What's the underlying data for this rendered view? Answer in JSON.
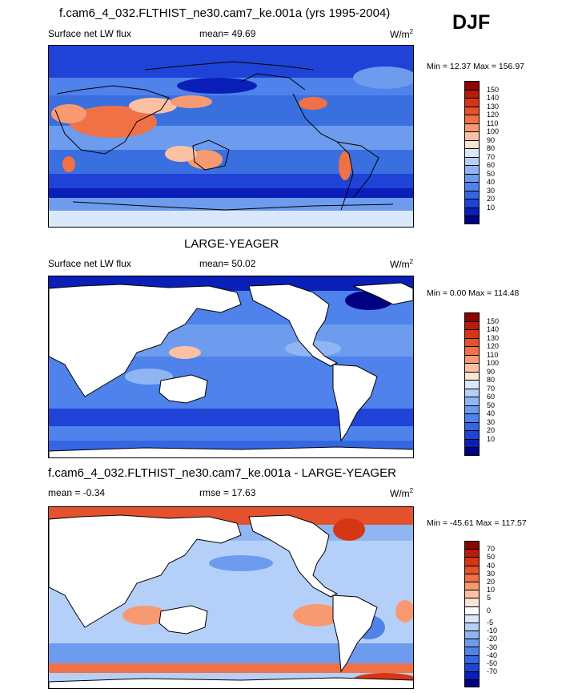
{
  "season": "DJF",
  "colors": {
    "scale_abs": [
      "#000082",
      "#0a1fb8",
      "#1f43d6",
      "#3366e0",
      "#4f82ea",
      "#6d9cef",
      "#8fb6f3",
      "#b5d0f8",
      "#dbe8fb",
      "#fde3d4",
      "#fbc1a2",
      "#f79a72",
      "#f07146",
      "#e5512c",
      "#d63516",
      "#b71c0a",
      "#8b0700"
    ],
    "scale_diff": [
      "#000082",
      "#0a1fb8",
      "#1f43d6",
      "#3366e0",
      "#4f82ea",
      "#6d9cef",
      "#8fb6f3",
      "#b5d0f8",
      "#dbe8fb",
      "#ffffff",
      "#fde3d4",
      "#fbc1a2",
      "#f79a72",
      "#f07146",
      "#e5512c",
      "#d63516",
      "#b71c0a",
      "#8b0700"
    ],
    "land": "#ffffff",
    "coast": "#000000"
  },
  "panels": [
    {
      "title": "f.cam6_4_032.FLTHIST_ne30.cam7_ke.001a (yrs 1995-2004)",
      "variable": "Surface net LW flux",
      "mean": "mean=  49.69",
      "units": "W/m",
      "units_sup": "2",
      "minmax": "Min =  12.37 Max = 156.97",
      "ticks": [
        "150",
        "140",
        "130",
        "120",
        "110",
        "100",
        "90",
        "80",
        "70",
        "60",
        "50",
        "40",
        "30",
        "20",
        "10"
      ]
    },
    {
      "title": "LARGE-YEAGER",
      "variable": "Surface net LW flux",
      "mean": "mean=  50.02",
      "units": "W/m",
      "units_sup": "2",
      "minmax": "Min =   0.00 Max = 114.48",
      "ticks": [
        "150",
        "140",
        "130",
        "120",
        "110",
        "100",
        "90",
        "80",
        "70",
        "60",
        "50",
        "40",
        "30",
        "20",
        "10"
      ]
    },
    {
      "title": "f.cam6_4_032.FLTHIST_ne30.cam7_ke.001a - LARGE-YEAGER",
      "variable": "mean =  -0.34",
      "mean": "rmse =  17.63",
      "units": "W/m",
      "units_sup": "2",
      "minmax": "Min = -45.61 Max = 117.57",
      "ticks": [
        "70",
        "50",
        "40",
        "30",
        "20",
        "10",
        "5",
        "0",
        "-5",
        "-10",
        "-20",
        "-30",
        "-40",
        "-50",
        "-70"
      ]
    }
  ]
}
